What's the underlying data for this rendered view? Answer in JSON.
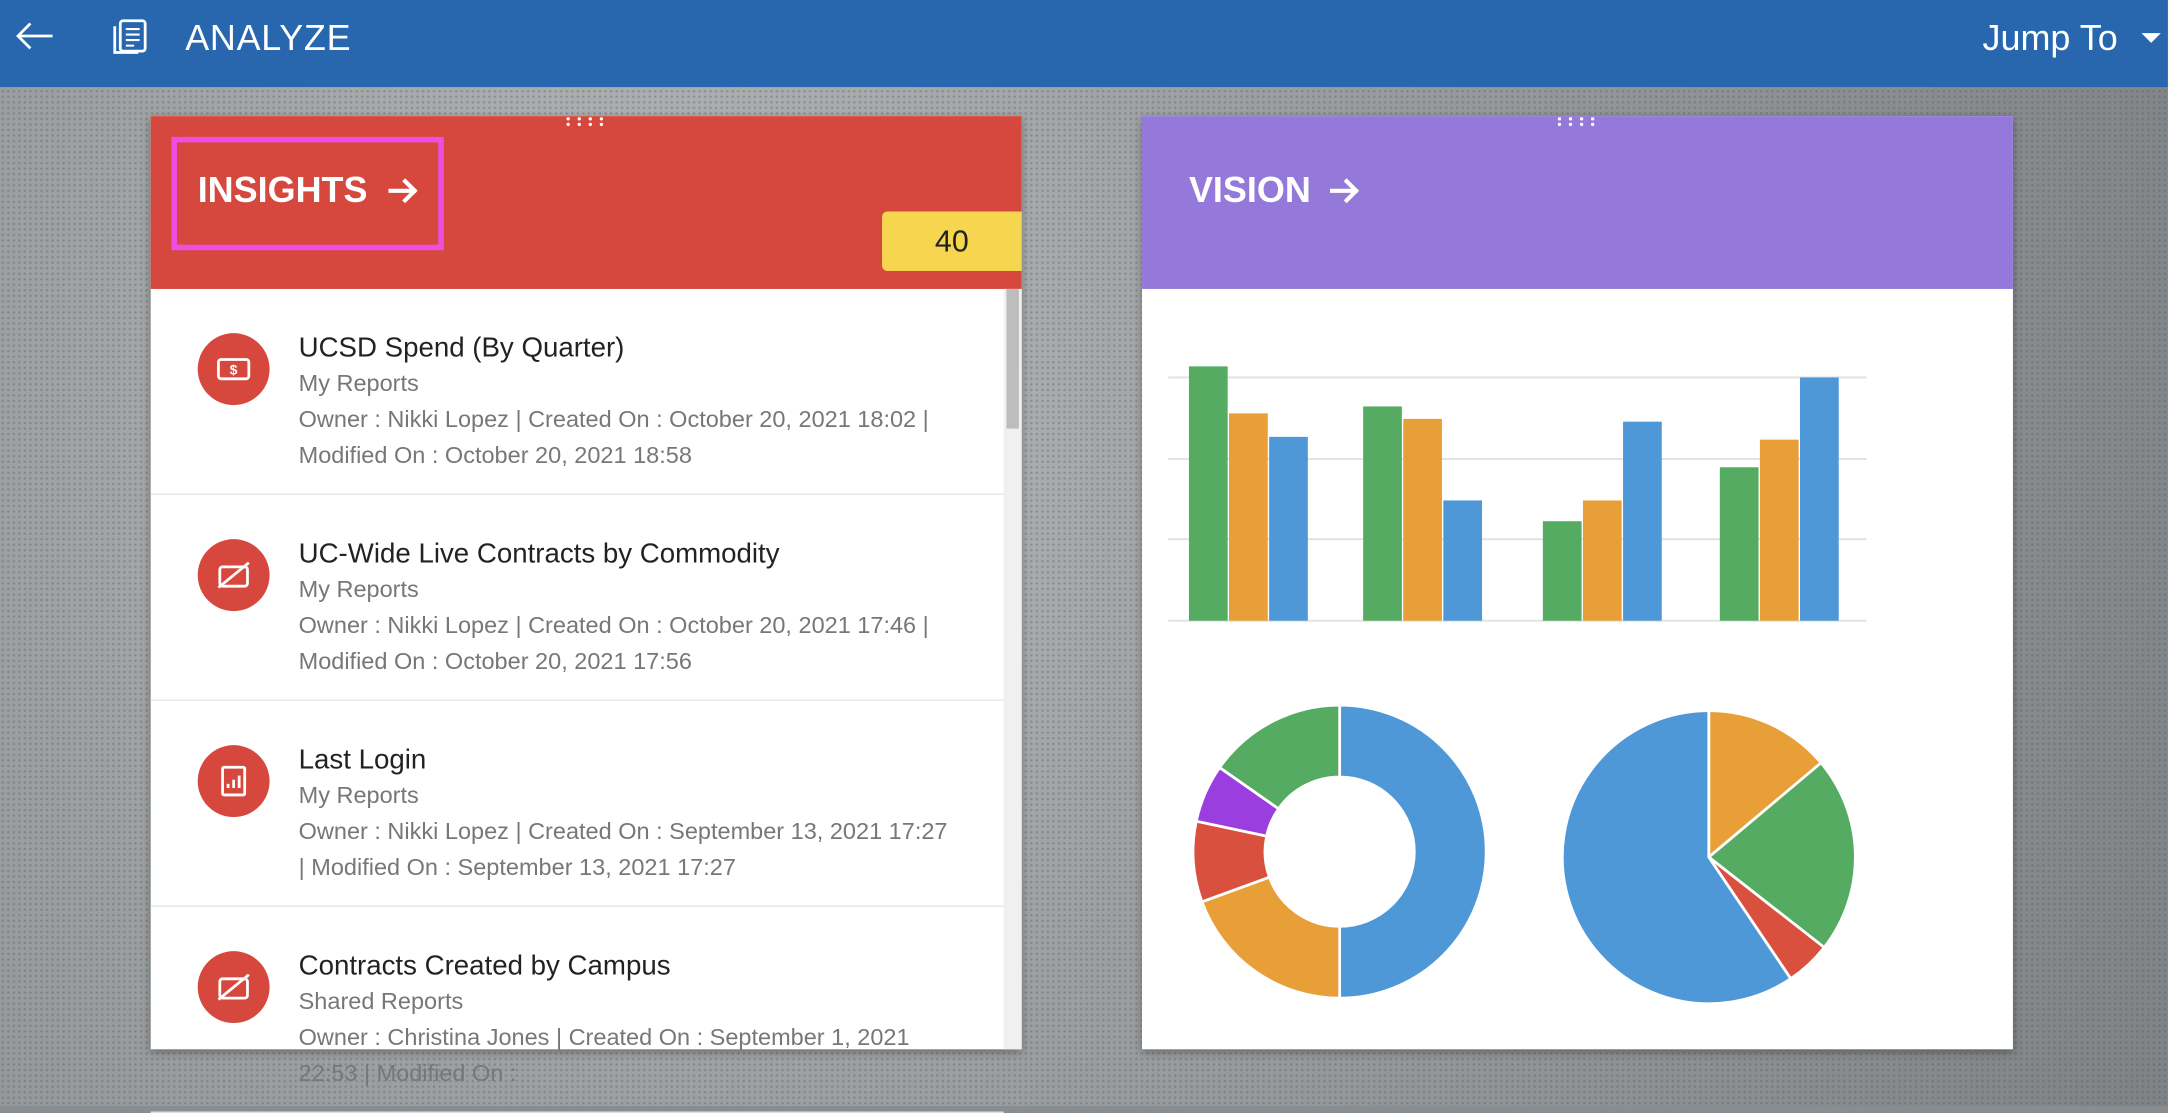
{
  "header": {
    "title": "ANALYZE",
    "jump_to": "Jump To"
  },
  "insights": {
    "title": "INSIGHTS",
    "count": 40,
    "items": [
      {
        "title": "UCSD Spend (By Quarter)",
        "folder": "My Reports",
        "meta": "Owner : Nikki Lopez | Created On : October 20, 2021 18:02 | Modified On : October 20, 2021 18:58"
      },
      {
        "title": "UC-Wide Live Contracts by Commodity",
        "folder": "My Reports",
        "meta": "Owner : Nikki Lopez | Created On : October 20, 2021 17:46 | Modified On : October 20, 2021 17:56"
      },
      {
        "title": "Last Login",
        "folder": "My Reports",
        "meta": "Owner : Nikki Lopez | Created On : September 13, 2021 17:27 | Modified On : September 13, 2021 17:27"
      },
      {
        "title": "Contracts Created by Campus",
        "folder": "Shared Reports",
        "meta": "Owner : Christina Jones | Created On : September 1, 2021 22:53 | Modified On :"
      }
    ]
  },
  "vision": {
    "title": "VISION"
  }
}
